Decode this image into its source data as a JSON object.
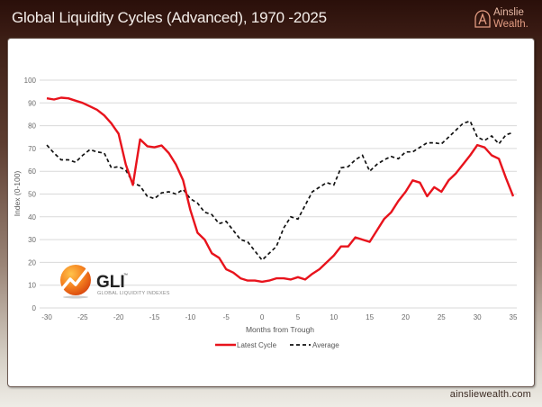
{
  "header": {
    "title": "Global Liquidity Cycles (Advanced), 1970 -2025",
    "brand_line1": "Ainslie",
    "brand_line2": "Wealth."
  },
  "footer": {
    "url": "ainsliewealth.com"
  },
  "watermark": {
    "logo_text": "GLI",
    "trademark": "™",
    "subtitle": "GLOBAL LIQUIDITY INDEXES"
  },
  "colors": {
    "latest": "#e8131c",
    "average": "#111111",
    "grid": "#d9d9d9"
  },
  "chart_data": {
    "type": "line",
    "title": "Global Liquidity Cycles (Advanced), 1970 -2025",
    "xlabel": "Months from Trough",
    "ylabel": "Index (0-100)",
    "xlim": [
      -30,
      35
    ],
    "ylim": [
      0,
      100
    ],
    "xticks": [
      -30,
      -25,
      -20,
      -15,
      -10,
      -5,
      0,
      5,
      10,
      15,
      20,
      25,
      30,
      35
    ],
    "yticks": [
      0,
      10,
      20,
      30,
      40,
      50,
      60,
      70,
      80,
      90,
      100
    ],
    "grid": true,
    "legend_position": "bottom",
    "x": [
      -30,
      -29,
      -28,
      -27,
      -26,
      -25,
      -24,
      -23,
      -22,
      -21,
      -20,
      -19,
      -18,
      -17,
      -16,
      -15,
      -14,
      -13,
      -12,
      -11,
      -10,
      -9,
      -8,
      -7,
      -6,
      -5,
      -4,
      -3,
      -2,
      -1,
      0,
      1,
      2,
      3,
      4,
      5,
      6,
      7,
      8,
      9,
      10,
      11,
      12,
      13,
      14,
      15,
      16,
      17,
      18,
      19,
      20,
      21,
      22,
      23,
      24,
      25,
      26,
      27,
      28,
      29,
      30,
      31,
      32,
      33,
      34,
      35
    ],
    "series": [
      {
        "name": "Latest Cycle",
        "style": "solid",
        "values": [
          92,
          91.5,
          92.3,
          92,
          91,
          90,
          88.5,
          87,
          84.5,
          81,
          76.5,
          63,
          54,
          74,
          71,
          70.5,
          71.3,
          68,
          63,
          56,
          43,
          33,
          30,
          24,
          22,
          17,
          15.5,
          13,
          12,
          12,
          11.5,
          12,
          13,
          13,
          12.5,
          13.5,
          12.5,
          15,
          17,
          20,
          23,
          27,
          27,
          31,
          30,
          29,
          34,
          39,
          42,
          47,
          51,
          56,
          55,
          49,
          53,
          51,
          56,
          59,
          63,
          67,
          71.5,
          70.5,
          67,
          65.5,
          57,
          49
        ]
      },
      {
        "name": "Average",
        "style": "dashed",
        "values": [
          71.5,
          68,
          65,
          65,
          64,
          67,
          69.5,
          68.5,
          68,
          61.5,
          62,
          60.5,
          55,
          53.5,
          49,
          48,
          50.5,
          51,
          50,
          52,
          48,
          46,
          42,
          41,
          37,
          38,
          34,
          30,
          29,
          25,
          21,
          24,
          27,
          35,
          40,
          39,
          45,
          51,
          53,
          55,
          54,
          61.5,
          62,
          65,
          67,
          60,
          63,
          65,
          66.5,
          65.5,
          68.5,
          68.5,
          70.5,
          72.5,
          72.5,
          72,
          75,
          78,
          81,
          82,
          75,
          73.5,
          75.5,
          72,
          76,
          77
        ]
      }
    ]
  }
}
